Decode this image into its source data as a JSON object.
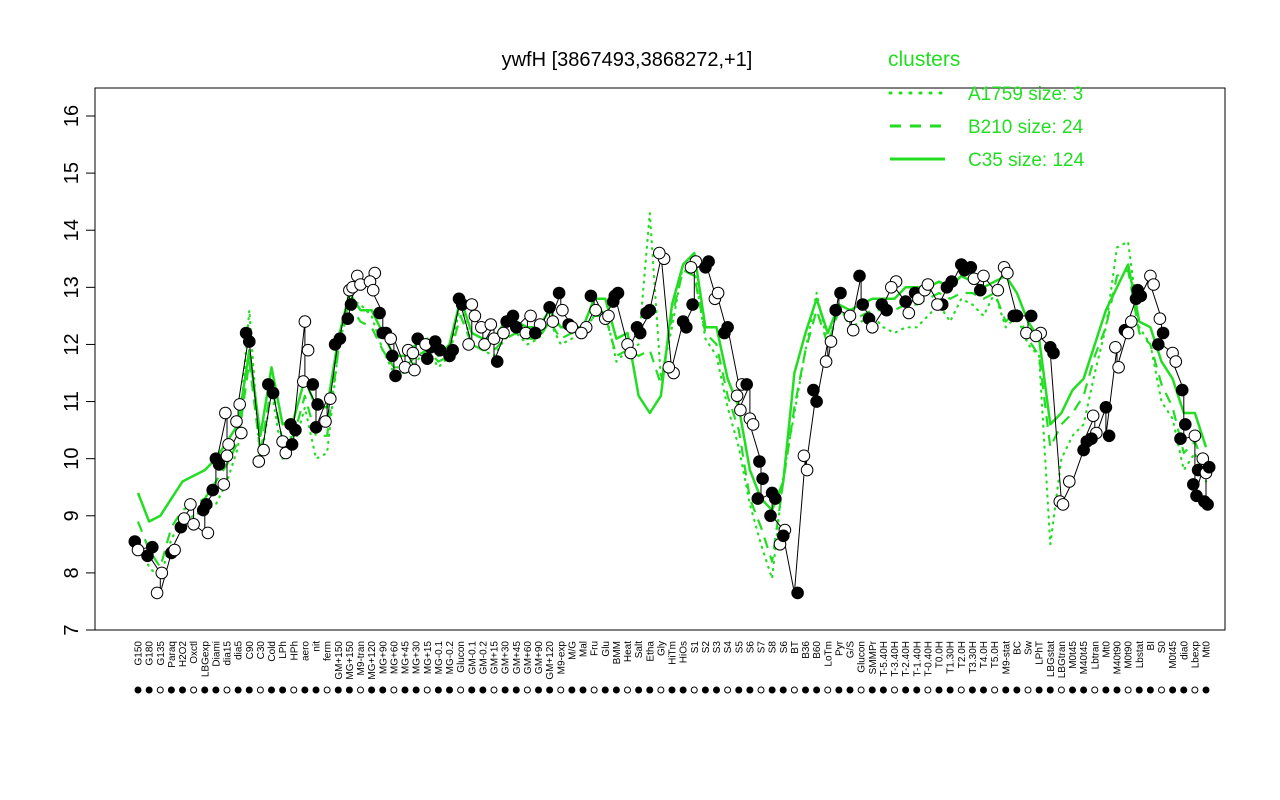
{
  "chart_data": {
    "type": "line",
    "title": "ywfH [3867493,3868272,+1]",
    "xlabel": "",
    "ylabel": "",
    "ylim": [
      7,
      16
    ],
    "yticks": [
      7,
      8,
      9,
      10,
      11,
      12,
      13,
      14,
      15,
      16
    ],
    "grid": false,
    "legend": {
      "title": "clusters",
      "placement": "top-right",
      "entries": [
        {
          "label": "A1759 size: 3",
          "style": "dotted"
        },
        {
          "label": "B210 size: 24",
          "style": "dashed"
        },
        {
          "label": "C35 size: 124",
          "style": "solid"
        }
      ]
    },
    "x_tick_labels": [
      "G150",
      "G180",
      "G135",
      "Paraq",
      "H2O2",
      "Oxctl",
      "LBGexp",
      "Diami",
      "dia15",
      "dia5",
      "C90",
      "C30",
      "Cold",
      "LPh",
      "HPh",
      "aero",
      "nit",
      "ferm",
      "GM+150",
      "MG+150",
      "M9-tran",
      "MG+120",
      "MG+90",
      "MG+60",
      "MG+45",
      "MG+30",
      "MG+15",
      "MG-0.1",
      "MG-0.2",
      "Glucon",
      "GM-0.1",
      "GM-0.2",
      "GM+15",
      "GM+30",
      "GM+45",
      "GM+60",
      "GM+90",
      "GM+120",
      "M9-exp",
      "M/G",
      "Mal",
      "Fru",
      "Glu",
      "BMM",
      "Heat",
      "Salt",
      "Etha",
      "Gly",
      "HiTm",
      "HiOs",
      "S1",
      "S2",
      "S3",
      "S4",
      "S5",
      "S6",
      "S7",
      "S8",
      "S6",
      "BT",
      "B36",
      "B60",
      "LoTm",
      "Pyr",
      "G/S",
      "Glucon",
      "SMMPr",
      "T-5.40H",
      "T-3.40H",
      "T-2.40H",
      "T-1.40H",
      "T-0.40H",
      "T0.0H",
      "T1.30H",
      "T2.0H",
      "T3.30H",
      "T4.0H",
      "T5.0H",
      "M9-stat",
      "BC",
      "Sw",
      "LPhT",
      "LBGstat",
      "LBGtran",
      "M0t45",
      "M40t45",
      "Lbtran",
      "Mt0",
      "M40t90",
      "M0t90",
      "Lbstat",
      "BI",
      "S0",
      "M0t45",
      "dia0",
      "Lbexp",
      "Mt0"
    ],
    "series": [
      {
        "name": "C35 size: 124",
        "style": "solid",
        "color": "#22dd22",
        "values": [
          9.4,
          8.9,
          9.0,
          9.3,
          9.6,
          9.7,
          9.8,
          10.0,
          10.3,
          10.6,
          11.9,
          10.4,
          11.6,
          10.6,
          10.7,
          11.4,
          10.9,
          10.9,
          12.1,
          12.9,
          12.6,
          12.6,
          12.2,
          11.8,
          11.8,
          12.0,
          12.1,
          11.8,
          12.0,
          12.8,
          12.2,
          12.1,
          12.1,
          12.4,
          12.4,
          12.3,
          12.3,
          12.6,
          12.3,
          12.3,
          12.3,
          12.8,
          12.8,
          12.1,
          12.2,
          11.1,
          10.8,
          11.1,
          12.7,
          13.4,
          13.6,
          12.3,
          12.3,
          11.4,
          10.9,
          9.8,
          9.3,
          9.1,
          9.6,
          11.5,
          12.2,
          12.8,
          12.2,
          12.7,
          12.6,
          12.7,
          12.8,
          12.8,
          12.8,
          13.0,
          13.0,
          13.0,
          13.1,
          13.0,
          13.2,
          13.1,
          13.0,
          13.1,
          13.2,
          12.9,
          12.4,
          12.1,
          10.6,
          10.8,
          11.2,
          11.4,
          12.0,
          12.6,
          13.0,
          13.4,
          12.4,
          12.3,
          11.7,
          11.4,
          10.8,
          10.8,
          10.2
        ]
      },
      {
        "name": "B210 size: 24",
        "style": "dashed",
        "color": "#22dd22",
        "values": [
          8.9,
          8.4,
          8.1,
          8.8,
          9.1,
          9.2,
          9.3,
          9.6,
          9.9,
          10.3,
          11.7,
          10.1,
          11.3,
          10.3,
          10.4,
          11.1,
          10.4,
          10.4,
          11.9,
          12.7,
          12.4,
          12.3,
          11.9,
          11.6,
          11.6,
          11.8,
          11.9,
          11.7,
          11.8,
          12.5,
          12.0,
          11.9,
          11.9,
          12.1,
          12.2,
          12.1,
          12.1,
          12.4,
          12.1,
          12.2,
          12.2,
          12.5,
          12.5,
          11.8,
          11.9,
          11.8,
          11.9,
          11.3,
          12.5,
          13.3,
          13.2,
          12.2,
          12.0,
          11.1,
          10.5,
          9.3,
          8.8,
          8.2,
          9.6,
          10.9,
          11.9,
          12.6,
          12.0,
          12.6,
          12.4,
          12.5,
          12.6,
          12.6,
          12.6,
          12.7,
          12.7,
          12.8,
          12.9,
          12.8,
          12.9,
          12.9,
          12.8,
          12.9,
          12.4,
          12.6,
          12.1,
          11.8,
          10.2,
          10.6,
          10.8,
          11.1,
          11.8,
          12.3,
          13.2,
          13.3,
          12.2,
          12.0,
          11.3,
          10.9,
          10.1,
          10.3,
          9.8
        ]
      },
      {
        "name": "A1759 size: 3",
        "style": "dotted",
        "color": "#22dd22",
        "values": [
          8.6,
          8.1,
          7.9,
          8.6,
          8.9,
          9.0,
          9.1,
          9.2,
          9.6,
          10.2,
          12.6,
          9.9,
          11.2,
          10.0,
          10.2,
          10.9,
          10.0,
          10.1,
          11.9,
          12.8,
          12.7,
          12.5,
          11.9,
          11.5,
          11.5,
          11.7,
          11.9,
          11.6,
          11.8,
          12.7,
          12.0,
          11.9,
          11.8,
          12.1,
          12.2,
          12.0,
          12.1,
          12.4,
          12.0,
          12.1,
          12.2,
          12.5,
          12.6,
          11.7,
          11.9,
          12.0,
          14.3,
          11.4,
          12.3,
          13.4,
          13.3,
          12.1,
          11.8,
          10.9,
          10.2,
          9.2,
          8.5,
          7.9,
          9.7,
          10.8,
          11.9,
          12.9,
          12.0,
          12.7,
          12.3,
          12.4,
          12.5,
          12.3,
          12.2,
          12.3,
          12.3,
          12.5,
          12.7,
          12.4,
          12.8,
          12.7,
          12.5,
          12.9,
          12.3,
          12.5,
          12.0,
          11.8,
          8.5,
          10.0,
          10.4,
          10.6,
          11.5,
          12.3,
          13.7,
          13.8,
          12.3,
          12.0,
          11.0,
          10.7,
          9.8,
          10.1,
          9.6
        ]
      }
    ],
    "points": [
      [
        0,
        8.55,
        "f"
      ],
      [
        0,
        8.4,
        "o"
      ],
      [
        1,
        8.45,
        "f"
      ],
      [
        1,
        8.3,
        "f"
      ],
      [
        2,
        8.0,
        "o"
      ],
      [
        2,
        7.65,
        "o"
      ],
      [
        3,
        8.35,
        "f"
      ],
      [
        3,
        8.4,
        "o"
      ],
      [
        4,
        8.8,
        "f"
      ],
      [
        4,
        8.95,
        "o"
      ],
      [
        5,
        9.2,
        "o"
      ],
      [
        5,
        8.85,
        "o"
      ],
      [
        6,
        8.7,
        "o"
      ],
      [
        6,
        9.1,
        "f"
      ],
      [
        6,
        9.2,
        "f"
      ],
      [
        7,
        9.45,
        "f"
      ],
      [
        7,
        10.0,
        "f"
      ],
      [
        7,
        9.9,
        "f"
      ],
      [
        8,
        10.8,
        "o"
      ],
      [
        8,
        10.25,
        "o"
      ],
      [
        8,
        9.55,
        "o"
      ],
      [
        8,
        10.05,
        "o"
      ],
      [
        9,
        10.45,
        "o"
      ],
      [
        9,
        10.65,
        "o"
      ],
      [
        9,
        10.95,
        "o"
      ],
      [
        10,
        12.2,
        "f"
      ],
      [
        10,
        12.05,
        "f"
      ],
      [
        11,
        10.15,
        "o"
      ],
      [
        11,
        9.95,
        "o"
      ],
      [
        12,
        11.15,
        "f"
      ],
      [
        12,
        11.3,
        "f"
      ],
      [
        13,
        10.3,
        "o"
      ],
      [
        13,
        10.1,
        "o"
      ],
      [
        14,
        10.25,
        "f"
      ],
      [
        14,
        10.5,
        "f"
      ],
      [
        14,
        10.6,
        "f"
      ],
      [
        15,
        12.4,
        "o"
      ],
      [
        15,
        11.9,
        "o"
      ],
      [
        15,
        11.35,
        "o"
      ],
      [
        16,
        10.95,
        "f"
      ],
      [
        16,
        11.3,
        "f"
      ],
      [
        16,
        10.55,
        "f"
      ],
      [
        17,
        11.05,
        "o"
      ],
      [
        17,
        10.65,
        "o"
      ],
      [
        18,
        12.1,
        "f"
      ],
      [
        18,
        12.0,
        "f"
      ],
      [
        19,
        12.95,
        "o"
      ],
      [
        19,
        13.0,
        "o"
      ],
      [
        19,
        12.45,
        "f"
      ],
      [
        19,
        12.7,
        "f"
      ],
      [
        20,
        13.2,
        "o"
      ],
      [
        20,
        13.05,
        "o"
      ],
      [
        21,
        13.25,
        "o"
      ],
      [
        21,
        13.1,
        "o"
      ],
      [
        21,
        12.95,
        "o"
      ],
      [
        22,
        12.55,
        "f"
      ],
      [
        22,
        12.2,
        "f"
      ],
      [
        22,
        12.2,
        "f"
      ],
      [
        23,
        11.8,
        "f"
      ],
      [
        23,
        11.45,
        "f"
      ],
      [
        23,
        12.1,
        "o"
      ],
      [
        24,
        11.6,
        "o"
      ],
      [
        24,
        11.9,
        "o"
      ],
      [
        25,
        11.55,
        "o"
      ],
      [
        25,
        12.1,
        "f"
      ],
      [
        25,
        11.85,
        "o"
      ],
      [
        26,
        11.75,
        "f"
      ],
      [
        26,
        11.95,
        "f"
      ],
      [
        26,
        12.0,
        "o"
      ],
      [
        27,
        11.9,
        "f"
      ],
      [
        27,
        12.05,
        "f"
      ],
      [
        28,
        11.8,
        "f"
      ],
      [
        28,
        11.9,
        "f"
      ],
      [
        29,
        12.8,
        "f"
      ],
      [
        29,
        12.7,
        "f"
      ],
      [
        30,
        12.0,
        "o"
      ],
      [
        30,
        12.7,
        "o"
      ],
      [
        30,
        12.5,
        "o"
      ],
      [
        31,
        12.3,
        "o"
      ],
      [
        31,
        12.0,
        "o"
      ],
      [
        32,
        12.35,
        "o"
      ],
      [
        32,
        12.1,
        "o"
      ],
      [
        32,
        11.7,
        "f"
      ],
      [
        33,
        12.2,
        "o"
      ],
      [
        33,
        12.4,
        "f"
      ],
      [
        34,
        12.5,
        "f"
      ],
      [
        34,
        12.3,
        "f"
      ],
      [
        35,
        12.5,
        "o"
      ],
      [
        35,
        12.2,
        "o"
      ],
      [
        36,
        12.35,
        "o"
      ],
      [
        36,
        12.2,
        "f"
      ],
      [
        37,
        12.65,
        "f"
      ],
      [
        37,
        12.4,
        "o"
      ],
      [
        38,
        12.9,
        "f"
      ],
      [
        38,
        12.6,
        "o"
      ],
      [
        39,
        12.35,
        "f"
      ],
      [
        39,
        12.3,
        "o"
      ],
      [
        40,
        12.3,
        "o"
      ],
      [
        40,
        12.2,
        "o"
      ],
      [
        41,
        12.6,
        "o"
      ],
      [
        41,
        12.85,
        "f"
      ],
      [
        42,
        12.45,
        "o"
      ],
      [
        42,
        12.5,
        "o"
      ],
      [
        43,
        12.85,
        "f"
      ],
      [
        43,
        12.9,
        "f"
      ],
      [
        43,
        12.75,
        "f"
      ],
      [
        44,
        12.0,
        "o"
      ],
      [
        44,
        11.85,
        "o"
      ],
      [
        45,
        12.3,
        "f"
      ],
      [
        45,
        12.2,
        "f"
      ],
      [
        46,
        12.55,
        "f"
      ],
      [
        46,
        12.6,
        "f"
      ],
      [
        47,
        13.5,
        "o"
      ],
      [
        47,
        13.6,
        "o"
      ],
      [
        48,
        11.5,
        "o"
      ],
      [
        48,
        11.6,
        "o"
      ],
      [
        49,
        12.4,
        "f"
      ],
      [
        49,
        12.3,
        "f"
      ],
      [
        50,
        12.7,
        "f"
      ],
      [
        50,
        13.45,
        "o"
      ],
      [
        50,
        13.35,
        "o"
      ],
      [
        51,
        13.35,
        "f"
      ],
      [
        51,
        13.45,
        "f"
      ],
      [
        52,
        12.8,
        "o"
      ],
      [
        52,
        12.9,
        "o"
      ],
      [
        53,
        12.2,
        "f"
      ],
      [
        53,
        12.3,
        "f"
      ],
      [
        54,
        11.3,
        "o"
      ],
      [
        54,
        11.1,
        "o"
      ],
      [
        54,
        10.85,
        "o"
      ],
      [
        55,
        11.3,
        "f"
      ],
      [
        55,
        10.7,
        "o"
      ],
      [
        55,
        10.6,
        "o"
      ],
      [
        56,
        9.95,
        "f"
      ],
      [
        56,
        9.65,
        "f"
      ],
      [
        56,
        9.3,
        "f"
      ],
      [
        57,
        9.4,
        "f"
      ],
      [
        57,
        9.3,
        "f"
      ],
      [
        57,
        9.0,
        "f"
      ],
      [
        58,
        8.75,
        "o"
      ],
      [
        58,
        8.5,
        "o"
      ],
      [
        58,
        8.65,
        "f"
      ],
      [
        59,
        7.65,
        "f"
      ],
      [
        60,
        10.05,
        "o"
      ],
      [
        60,
        9.8,
        "o"
      ],
      [
        61,
        11.2,
        "f"
      ],
      [
        61,
        11.0,
        "f"
      ],
      [
        62,
        12.05,
        "o"
      ],
      [
        62,
        11.7,
        "o"
      ],
      [
        63,
        12.9,
        "f"
      ],
      [
        63,
        12.6,
        "f"
      ],
      [
        64,
        12.5,
        "o"
      ],
      [
        64,
        12.25,
        "o"
      ],
      [
        65,
        13.2,
        "f"
      ],
      [
        65,
        12.7,
        "f"
      ],
      [
        66,
        12.45,
        "f"
      ],
      [
        66,
        12.3,
        "o"
      ],
      [
        67,
        12.6,
        "f"
      ],
      [
        67,
        12.7,
        "f"
      ],
      [
        68,
        13.1,
        "o"
      ],
      [
        68,
        13.0,
        "o"
      ],
      [
        69,
        12.75,
        "f"
      ],
      [
        69,
        12.55,
        "o"
      ],
      [
        70,
        12.9,
        "f"
      ],
      [
        70,
        12.8,
        "o"
      ],
      [
        71,
        12.95,
        "o"
      ],
      [
        71,
        13.05,
        "o"
      ],
      [
        72,
        12.7,
        "f"
      ],
      [
        72,
        12.7,
        "o"
      ],
      [
        73,
        13.1,
        "f"
      ],
      [
        73,
        13.0,
        "f"
      ],
      [
        74,
        13.4,
        "f"
      ],
      [
        74,
        13.3,
        "f"
      ],
      [
        75,
        13.35,
        "f"
      ],
      [
        75,
        13.15,
        "o"
      ],
      [
        76,
        12.95,
        "f"
      ],
      [
        76,
        13.2,
        "o"
      ],
      [
        77,
        12.95,
        "o"
      ],
      [
        78,
        13.35,
        "o"
      ],
      [
        78,
        13.25,
        "o"
      ],
      [
        79,
        12.5,
        "f"
      ],
      [
        79,
        12.5,
        "f"
      ],
      [
        80,
        12.5,
        "f"
      ],
      [
        80,
        12.2,
        "o"
      ],
      [
        81,
        12.2,
        "o"
      ],
      [
        81,
        12.15,
        "o"
      ],
      [
        82,
        11.95,
        "f"
      ],
      [
        82,
        11.85,
        "f"
      ],
      [
        83,
        9.25,
        "o"
      ],
      [
        83,
        9.2,
        "o"
      ],
      [
        84,
        9.6,
        "o"
      ],
      [
        85,
        10.15,
        "f"
      ],
      [
        85,
        10.3,
        "f"
      ],
      [
        86,
        10.75,
        "o"
      ],
      [
        86,
        10.45,
        "o"
      ],
      [
        86,
        10.35,
        "f"
      ],
      [
        87,
        10.9,
        "f"
      ],
      [
        87,
        10.4,
        "f"
      ],
      [
        88,
        11.95,
        "o"
      ],
      [
        88,
        11.6,
        "o"
      ],
      [
        89,
        12.25,
        "f"
      ],
      [
        89,
        12.2,
        "o"
      ],
      [
        89,
        12.4,
        "o"
      ],
      [
        90,
        12.95,
        "f"
      ],
      [
        90,
        12.85,
        "f"
      ],
      [
        90,
        12.8,
        "f"
      ],
      [
        91,
        13.2,
        "o"
      ],
      [
        91,
        13.05,
        "o"
      ],
      [
        92,
        12.45,
        "o"
      ],
      [
        92,
        12.2,
        "f"
      ],
      [
        92,
        12.0,
        "f"
      ],
      [
        93,
        11.85,
        "o"
      ],
      [
        93,
        11.7,
        "o"
      ],
      [
        94,
        11.2,
        "f"
      ],
      [
        94,
        10.6,
        "f"
      ],
      [
        94,
        10.35,
        "f"
      ],
      [
        95,
        10.4,
        "o"
      ],
      [
        95,
        9.8,
        "f"
      ],
      [
        95,
        9.55,
        "f"
      ],
      [
        95,
        9.35,
        "f"
      ],
      [
        96,
        10.0,
        "o"
      ],
      [
        96,
        9.75,
        "o"
      ],
      [
        96,
        9.85,
        "f"
      ],
      [
        96,
        9.25,
        "f"
      ],
      [
        96,
        9.2,
        "f"
      ]
    ]
  }
}
